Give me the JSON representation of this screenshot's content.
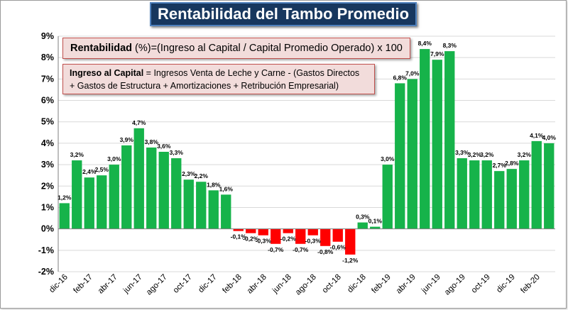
{
  "title": "Rentabilidad del Tambo Promedio",
  "formula1": {
    "term": "Rentabilidad",
    "rest": " (%)=(Ingreso al Capital / Capital Promedio Operado) x 100"
  },
  "formula2": {
    "term": "Ingreso al Capital",
    "line1_rest": " = Ingresos Venta de Leche  y Carne  -  (Gastos Directos",
    "line2": "+ Gastos de Estructura  + Amortizaciones  +  Retribución Empresarial)"
  },
  "colors": {
    "positive": "#16b34a",
    "negative": "#ff0000",
    "title_bg": "#17375e",
    "formula_bg": "#f2dcdb"
  },
  "chart_data": {
    "type": "bar",
    "ylim": [
      -2,
      9
    ],
    "grid": true,
    "y_ticks": [
      "-2%",
      "-1%",
      "0%",
      "1%",
      "2%",
      "3%",
      "4%",
      "5%",
      "6%",
      "7%",
      "8%",
      "9%"
    ],
    "x_tick_labels": [
      "dic-16",
      "feb-17",
      "abr-17",
      "jun-17",
      "ago-17",
      "oct-17",
      "dic-17",
      "feb-18",
      "abr-18",
      "jun-18",
      "ago-18",
      "oct-18",
      "dic-18",
      "feb-19",
      "abr-19",
      "jun-19",
      "ago-19",
      "oct-19",
      "dic-19",
      "feb-20"
    ],
    "values": [
      1.2,
      3.2,
      2.4,
      2.5,
      3.0,
      3.9,
      4.7,
      3.8,
      3.6,
      3.3,
      2.3,
      2.2,
      1.8,
      1.6,
      -0.1,
      -0.2,
      -0.3,
      -0.7,
      -0.2,
      -0.7,
      -0.3,
      -0.8,
      -0.6,
      -1.2,
      0.3,
      0.1,
      3.0,
      6.8,
      7.0,
      8.4,
      7.9,
      8.3,
      3.3,
      3.2,
      3.2,
      2.7,
      2.8,
      3.2,
      4.1,
      4.0
    ],
    "data_labels": [
      "1,2%",
      "3,2%",
      "2,4%",
      "2,5%",
      "3,0%",
      "3,9%",
      "4,7%",
      "3,8%",
      "3,6%",
      "3,3%",
      "2,3%",
      "2,2%",
      "1,8%",
      "1,6%",
      "-0,1%",
      "-0,2%",
      "-0,3%",
      "-0,7%",
      "-0,2%",
      "-0,7%",
      "-0,3%",
      "-0,8%",
      "-0,6%",
      "-1,2%",
      "0,3%",
      "0,1%",
      "3,0%",
      "6,8%",
      "7,0%",
      "8,4%",
      "7,9%",
      "8,3%",
      "3,3%",
      "3,2%",
      "3,2%",
      "2,7%",
      "2,8%",
      "3,2%",
      "4,1%",
      "4,0%"
    ]
  }
}
